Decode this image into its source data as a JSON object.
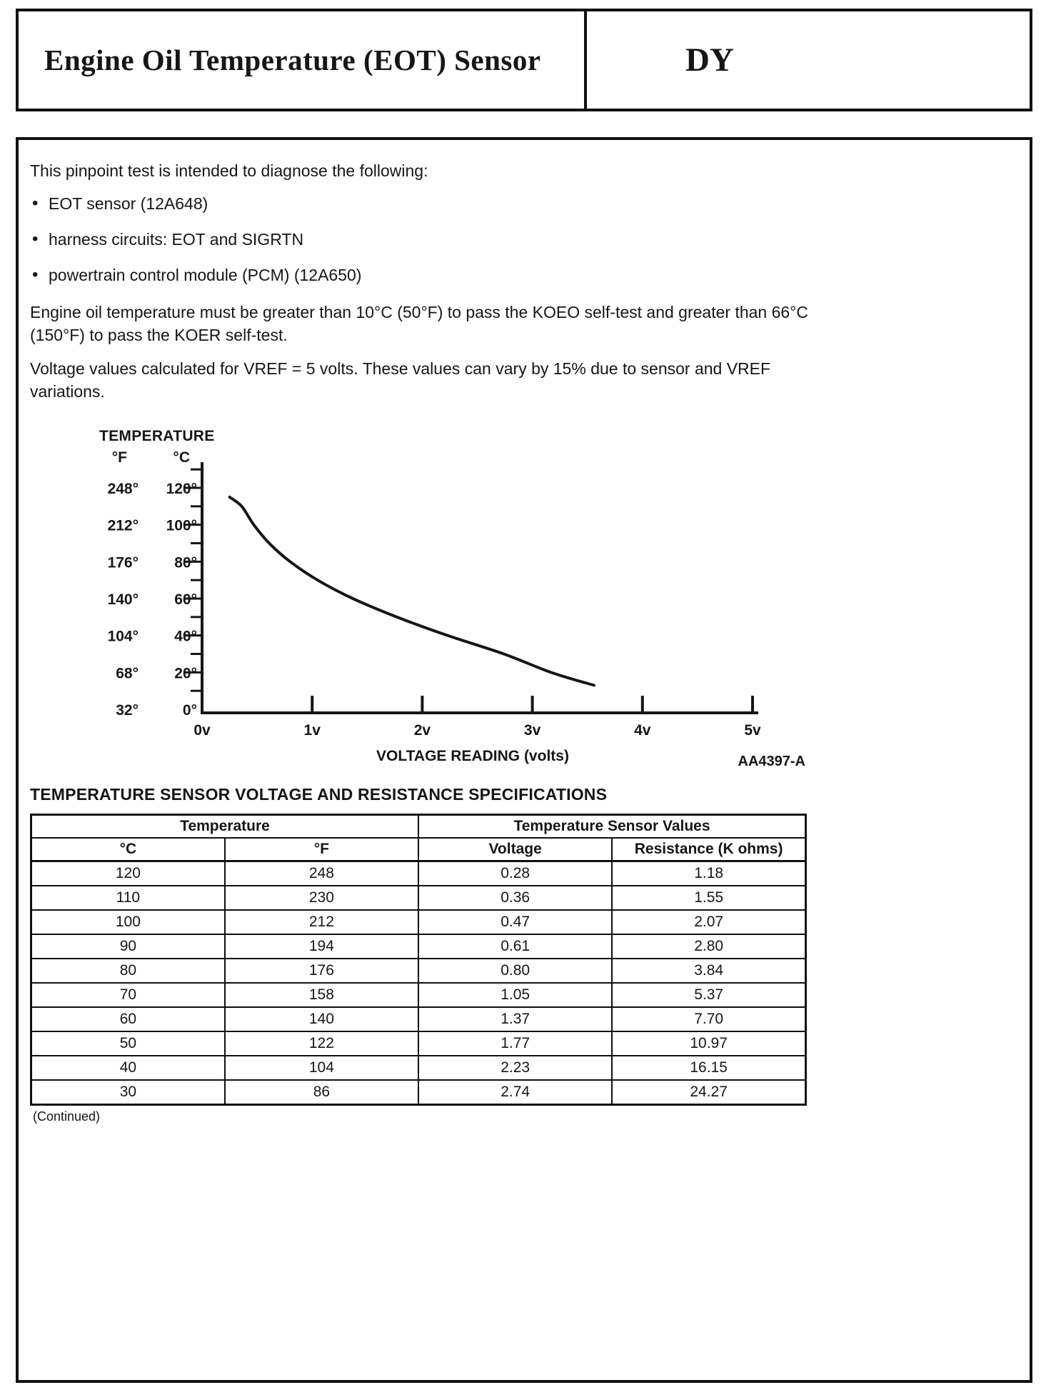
{
  "header": {
    "title": "Engine Oil Temperature (EOT) Sensor",
    "code": "DY"
  },
  "intro": {
    "lead": "This pinpoint test is intended to diagnose the following:",
    "bullets": [
      "EOT sensor (12A648)",
      "harness circuits: EOT and SIGRTN",
      "powertrain control module (PCM) (12A650)"
    ],
    "paragraphs": [
      "Engine oil temperature must be greater than 10°C (50°F) to pass the KOEO self-test and greater than 66°C (150°F) to pass the KOER self-test.",
      "Voltage values calculated for VREF = 5 volts. These values can vary by 15% due to sensor and VREF variations."
    ]
  },
  "chart_data": {
    "type": "line",
    "title": "TEMPERATURE",
    "xlabel": "VOLTAGE READING (volts)",
    "figure_ref": "AA4397-A",
    "xlim": [
      0,
      5
    ],
    "ylim_c": [
      0,
      130
    ],
    "grid": false,
    "x_ticks": {
      "values": [
        0,
        1,
        2,
        3,
        4,
        5
      ],
      "labels": [
        "0v",
        "1v",
        "2v",
        "3v",
        "4v",
        "5v"
      ]
    },
    "y_axis": {
      "unit_headers": [
        "°F",
        "°C"
      ],
      "minor_step_c": 10,
      "ticks": [
        {
          "c_value": 120,
          "c_label": "120°",
          "f_label": "248°"
        },
        {
          "c_value": 100,
          "c_label": "100°",
          "f_label": "212°"
        },
        {
          "c_value": 80,
          "c_label": "80°",
          "f_label": "176°"
        },
        {
          "c_value": 60,
          "c_label": "60°",
          "f_label": "140°"
        },
        {
          "c_value": 40,
          "c_label": "40°",
          "f_label": "104°"
        },
        {
          "c_value": 20,
          "c_label": "20°",
          "f_label": "68°"
        },
        {
          "c_value": 0,
          "c_label": "0°",
          "f_label": "32°"
        }
      ]
    },
    "series": [
      {
        "name": "curve",
        "points": [
          [
            0.25,
            115
          ],
          [
            0.36,
            110
          ],
          [
            0.47,
            100
          ],
          [
            0.61,
            90
          ],
          [
            0.8,
            80
          ],
          [
            1.05,
            70
          ],
          [
            1.37,
            60
          ],
          [
            1.77,
            50
          ],
          [
            2.23,
            40
          ],
          [
            2.74,
            30
          ],
          [
            3.17,
            20
          ],
          [
            3.56,
            13
          ]
        ]
      }
    ]
  },
  "spec_table": {
    "heading": "TEMPERATURE SENSOR VOLTAGE AND RESISTANCE SPECIFICATIONS",
    "group_headers": [
      "Temperature",
      "Temperature Sensor Values"
    ],
    "columns": [
      "°C",
      "°F",
      "Voltage",
      "Resistance (K ohms)"
    ],
    "rows": [
      [
        "120",
        "248",
        "0.28",
        "1.18"
      ],
      [
        "110",
        "230",
        "0.36",
        "1.55"
      ],
      [
        "100",
        "212",
        "0.47",
        "2.07"
      ],
      [
        "90",
        "194",
        "0.61",
        "2.80"
      ],
      [
        "80",
        "176",
        "0.80",
        "3.84"
      ],
      [
        "70",
        "158",
        "1.05",
        "5.37"
      ],
      [
        "60",
        "140",
        "1.37",
        "7.70"
      ],
      [
        "50",
        "122",
        "1.77",
        "10.97"
      ],
      [
        "40",
        "104",
        "2.23",
        "16.15"
      ],
      [
        "30",
        "86",
        "2.74",
        "24.27"
      ]
    ],
    "continued_note": "(Continued)"
  }
}
